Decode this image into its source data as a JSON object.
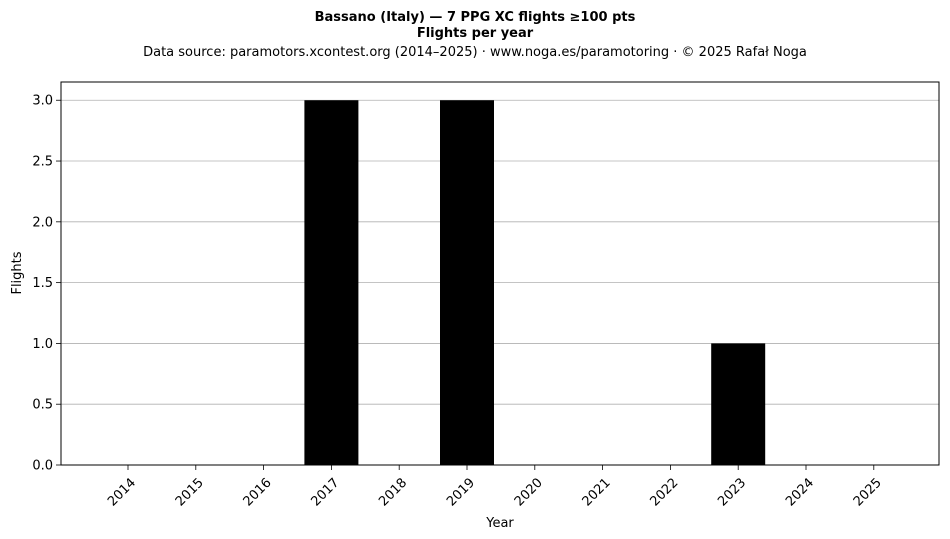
{
  "chart_data": {
    "type": "bar",
    "title": "Bassano (Italy)  —  7 PPG XC flights ≥100 pts",
    "title2": "Flights per year",
    "subtitle": "Data source: paramotors.xcontest.org (2014–2025)  ·  www.noga.es/paramotoring  ·  © 2025 Rafał Noga",
    "xlabel": "Year",
    "ylabel": "Flights",
    "categories": [
      "2014",
      "2015",
      "2016",
      "2017",
      "2018",
      "2019",
      "2020",
      "2021",
      "2022",
      "2023",
      "2024",
      "2025"
    ],
    "values": [
      0,
      0,
      0,
      3,
      0,
      3,
      0,
      0,
      0,
      1,
      0,
      0
    ],
    "ylim": [
      0,
      3.15
    ],
    "yticks": [
      "0.0",
      "0.5",
      "1.0",
      "1.5",
      "2.0",
      "2.5",
      "3.0"
    ],
    "grid": "y",
    "bar_color": "#000000",
    "grid_color": "#b0b0b0"
  }
}
